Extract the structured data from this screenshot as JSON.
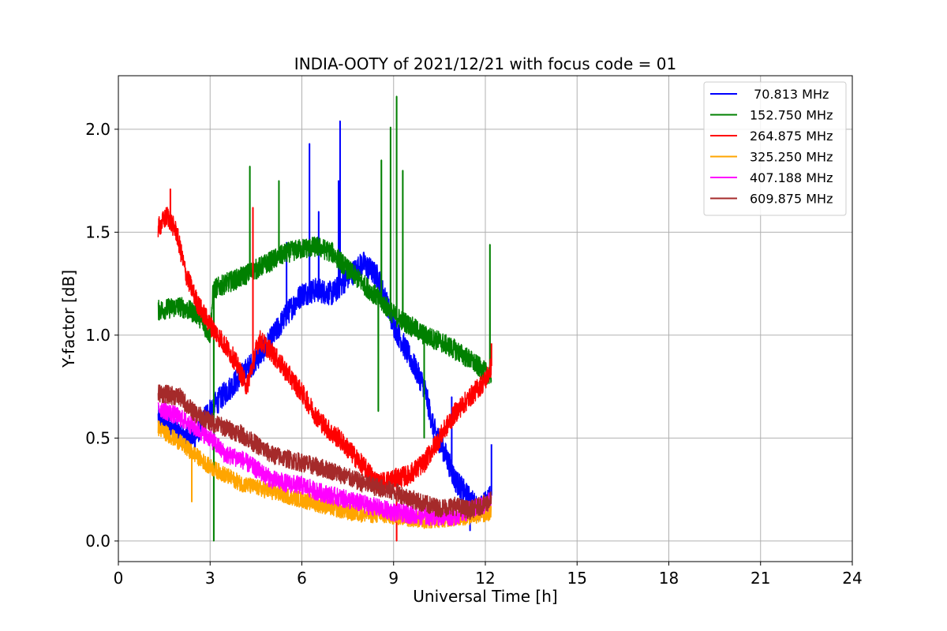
{
  "chart_data": {
    "type": "line",
    "title": "INDIA-OOTY of 2021/12/21 with focus code = 01",
    "xlabel": "Universal Time [h]",
    "ylabel": "Y-factor [dB]",
    "xlim": [
      0,
      24
    ],
    "ylim": [
      -0.1,
      2.26
    ],
    "xticks": [
      0,
      3,
      6,
      9,
      12,
      15,
      18,
      21,
      24
    ],
    "xtick_labels": [
      "0",
      "3",
      "6",
      "9",
      "12",
      "15",
      "18",
      "21",
      "24"
    ],
    "yticks": [
      0.0,
      0.5,
      1.0,
      1.5,
      2.0
    ],
    "ytick_labels": [
      "0.0",
      "0.5",
      "1.0",
      "1.5",
      "2.0"
    ],
    "grid": true,
    "legend_position": "top-right",
    "series": [
      {
        "name": " 70.813 MHz",
        "color": "#0000ff",
        "noise": 0.06,
        "x": [
          1.3,
          2.0,
          2.5,
          2.9,
          3.5,
          4.0,
          4.5,
          5.0,
          5.5,
          6.0,
          6.5,
          7.0,
          7.5,
          8.0,
          8.5,
          9.0,
          9.5,
          10.0,
          10.3,
          10.7,
          11.0,
          11.4,
          11.8,
          12.2
        ],
        "y": [
          0.6,
          0.52,
          0.5,
          0.62,
          0.72,
          0.8,
          0.88,
          0.98,
          1.1,
          1.2,
          1.22,
          1.2,
          1.28,
          1.35,
          1.28,
          1.05,
          0.9,
          0.75,
          0.55,
          0.42,
          0.3,
          0.22,
          0.15,
          0.22
        ],
        "spikes": [
          [
            6.25,
            1.93
          ],
          [
            7.25,
            2.04
          ],
          [
            7.2,
            1.75
          ],
          [
            6.55,
            1.6
          ],
          [
            12.2,
            0.47
          ],
          [
            5.5,
            1.45
          ],
          [
            10.9,
            0.7
          ],
          [
            11.5,
            0.05
          ]
        ]
      },
      {
        "name": "152.750 MHz",
        "color": "#008000",
        "noise": 0.05,
        "x": [
          1.3,
          2.0,
          2.6,
          3.0,
          3.1,
          3.5,
          4.0,
          4.5,
          5.0,
          5.5,
          6.0,
          6.5,
          7.0,
          7.5,
          8.0,
          8.5,
          9.0,
          9.5,
          10.0,
          10.5,
          11.0,
          11.5,
          12.0,
          12.2
        ],
        "y": [
          1.12,
          1.14,
          1.1,
          1.0,
          1.22,
          1.25,
          1.28,
          1.32,
          1.36,
          1.4,
          1.42,
          1.43,
          1.4,
          1.32,
          1.25,
          1.18,
          1.1,
          1.05,
          1.0,
          0.97,
          0.93,
          0.88,
          0.82,
          0.8
        ],
        "spikes": [
          [
            4.3,
            1.82
          ],
          [
            5.25,
            1.75
          ],
          [
            8.6,
            1.85
          ],
          [
            8.5,
            0.63
          ],
          [
            8.9,
            2.01
          ],
          [
            9.1,
            2.16
          ],
          [
            12.15,
            1.44
          ],
          [
            3.12,
            0.0
          ],
          [
            10.0,
            0.5
          ],
          [
            9.3,
            1.8
          ]
        ]
      },
      {
        "name": "264.875 MHz",
        "color": "#ff0000",
        "noise": 0.05,
        "x": [
          1.3,
          1.6,
          1.9,
          2.2,
          2.6,
          3.0,
          3.4,
          3.8,
          4.2,
          4.6,
          5.0,
          5.5,
          6.0,
          6.5,
          7.0,
          7.2,
          8.5,
          9.0,
          9.5,
          10.0,
          10.5,
          11.0,
          11.5,
          12.0,
          12.2
        ],
        "y": [
          1.52,
          1.58,
          1.5,
          1.3,
          1.15,
          1.05,
          0.97,
          0.88,
          0.75,
          0.98,
          0.92,
          0.82,
          0.72,
          0.6,
          0.52,
          0.5,
          0.28,
          0.3,
          0.32,
          0.38,
          0.5,
          0.62,
          0.7,
          0.78,
          0.85
        ],
        "spikes": [
          [
            1.7,
            1.71
          ],
          [
            4.4,
            1.62
          ],
          [
            9.1,
            0.0
          ],
          [
            12.2,
            0.96
          ]
        ]
      },
      {
        "name": "325.250 MHz",
        "color": "#ffa500",
        "noise": 0.04,
        "x": [
          1.3,
          2.0,
          2.5,
          3.0,
          3.5,
          4.0,
          5.0,
          6.0,
          7.0,
          7.5,
          8.0,
          9.0,
          10.0,
          11.0,
          12.0,
          12.2
        ],
        "y": [
          0.55,
          0.48,
          0.42,
          0.36,
          0.32,
          0.28,
          0.24,
          0.2,
          0.16,
          0.14,
          0.13,
          0.12,
          0.1,
          0.11,
          0.13,
          0.14
        ],
        "spikes": [
          [
            2.4,
            0.19
          ]
        ]
      },
      {
        "name": "407.188 MHz",
        "color": "#ff00ff",
        "noise": 0.045,
        "x": [
          1.3,
          2.0,
          2.5,
          3.0,
          3.5,
          4.0,
          4.5,
          5.0,
          5.5,
          6.0,
          6.5,
          7.0,
          7.5,
          8.0,
          8.5,
          9.0,
          10.0,
          11.0,
          12.0,
          12.2
        ],
        "y": [
          0.65,
          0.6,
          0.55,
          0.5,
          0.42,
          0.4,
          0.35,
          0.3,
          0.28,
          0.27,
          0.24,
          0.22,
          0.2,
          0.18,
          0.16,
          0.14,
          0.12,
          0.12,
          0.18,
          0.2
        ],
        "spikes": []
      },
      {
        "name": "609.875 MHz",
        "color": "#a52a2a",
        "noise": 0.045,
        "x": [
          1.3,
          2.0,
          2.5,
          3.0,
          3.5,
          4.0,
          4.5,
          5.0,
          5.5,
          6.0,
          6.5,
          7.0,
          7.5,
          8.0,
          8.5,
          9.0,
          9.5,
          10.0,
          10.5,
          11.0,
          11.5,
          12.0,
          12.2
        ],
        "y": [
          0.72,
          0.7,
          0.62,
          0.58,
          0.55,
          0.52,
          0.47,
          0.42,
          0.4,
          0.38,
          0.36,
          0.34,
          0.31,
          0.28,
          0.26,
          0.24,
          0.21,
          0.18,
          0.16,
          0.17,
          0.15,
          0.18,
          0.2
        ],
        "spikes": []
      }
    ]
  }
}
